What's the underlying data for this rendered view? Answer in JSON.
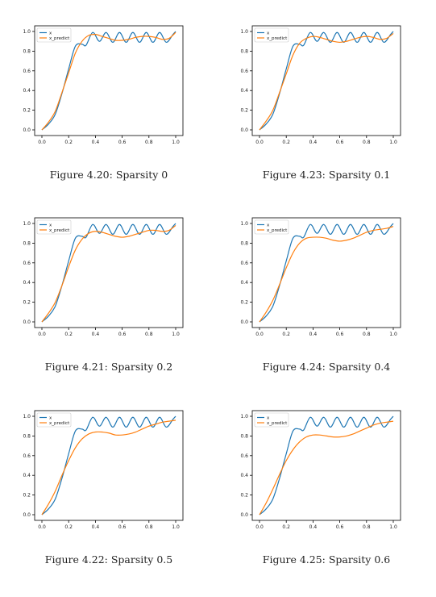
{
  "colors": {
    "x": "#1f77b4",
    "x_predict": "#ff7f0e"
  },
  "legend": {
    "x": "x",
    "x_predict": "x_predict"
  },
  "chart_data": [
    {
      "type": "line",
      "caption": "Figure 4.20: Sparsity 0",
      "xlim": [
        0,
        1
      ],
      "ylim": [
        0,
        1
      ],
      "xticks": [
        "0.0",
        "0.2",
        "0.4",
        "0.6",
        "0.8",
        "1.0"
      ],
      "yticks": [
        "0.0",
        "0.2",
        "0.4",
        "0.6",
        "0.8",
        "1.0"
      ],
      "legend_position": "top-left",
      "series": [
        {
          "name": "x",
          "x": [
            0,
            0.05,
            0.1,
            0.15,
            0.2,
            0.25,
            0.3,
            0.33,
            0.38,
            0.43,
            0.48,
            0.53,
            0.58,
            0.63,
            0.68,
            0.73,
            0.78,
            0.83,
            0.88,
            0.93,
            0.98,
            1.0
          ],
          "y": [
            0,
            0.06,
            0.16,
            0.37,
            0.62,
            0.85,
            0.87,
            0.86,
            0.99,
            0.9,
            0.99,
            0.89,
            0.99,
            0.89,
            0.99,
            0.89,
            0.99,
            0.89,
            0.99,
            0.89,
            0.97,
            1.0
          ]
        },
        {
          "name": "x_predict",
          "x": [
            0,
            0.05,
            0.1,
            0.15,
            0.2,
            0.25,
            0.3,
            0.35,
            0.4,
            0.45,
            0.5,
            0.55,
            0.6,
            0.65,
            0.7,
            0.75,
            0.8,
            0.85,
            0.9,
            0.95,
            1.0
          ],
          "y": [
            0,
            0.08,
            0.19,
            0.38,
            0.58,
            0.78,
            0.9,
            0.96,
            0.97,
            0.95,
            0.93,
            0.91,
            0.91,
            0.92,
            0.94,
            0.95,
            0.95,
            0.94,
            0.92,
            0.93,
            0.99
          ]
        }
      ]
    },
    {
      "type": "line",
      "caption": "Figure 4.23: Sparsity 0.1",
      "xlim": [
        0,
        1
      ],
      "ylim": [
        0,
        1
      ],
      "xticks": [
        "0.0",
        "0.2",
        "0.4",
        "0.6",
        "0.8",
        "1.0"
      ],
      "yticks": [
        "0.0",
        "0.2",
        "0.4",
        "0.6",
        "0.8",
        "1.0"
      ],
      "legend_position": "top-left",
      "series": [
        {
          "name": "x",
          "x": [
            0,
            0.05,
            0.1,
            0.15,
            0.2,
            0.25,
            0.3,
            0.33,
            0.38,
            0.43,
            0.48,
            0.53,
            0.58,
            0.63,
            0.68,
            0.73,
            0.78,
            0.83,
            0.88,
            0.93,
            0.98,
            1.0
          ],
          "y": [
            0,
            0.06,
            0.16,
            0.37,
            0.62,
            0.85,
            0.87,
            0.86,
            0.99,
            0.9,
            0.99,
            0.89,
            0.99,
            0.89,
            0.99,
            0.89,
            0.99,
            0.89,
            0.99,
            0.89,
            0.97,
            1.0
          ]
        },
        {
          "name": "x_predict",
          "x": [
            0,
            0.05,
            0.1,
            0.15,
            0.2,
            0.25,
            0.3,
            0.35,
            0.4,
            0.45,
            0.5,
            0.55,
            0.6,
            0.65,
            0.7,
            0.75,
            0.8,
            0.85,
            0.9,
            0.95,
            1.0
          ],
          "y": [
            0,
            0.09,
            0.2,
            0.38,
            0.57,
            0.76,
            0.88,
            0.93,
            0.95,
            0.94,
            0.92,
            0.9,
            0.89,
            0.9,
            0.92,
            0.94,
            0.95,
            0.94,
            0.92,
            0.93,
            0.98
          ]
        }
      ]
    },
    {
      "type": "line",
      "caption": "Figure 4.21: Sparsity 0.2",
      "xlim": [
        0,
        1
      ],
      "ylim": [
        0,
        1
      ],
      "xticks": [
        "0.0",
        "0.2",
        "0.4",
        "0.6",
        "0.8",
        "1.0"
      ],
      "yticks": [
        "0.0",
        "0.2",
        "0.4",
        "0.6",
        "0.8",
        "1.0"
      ],
      "legend_position": "top-left",
      "series": [
        {
          "name": "x",
          "x": [
            0,
            0.05,
            0.1,
            0.15,
            0.2,
            0.25,
            0.3,
            0.33,
            0.38,
            0.43,
            0.48,
            0.53,
            0.58,
            0.63,
            0.68,
            0.73,
            0.78,
            0.83,
            0.88,
            0.93,
            0.98,
            1.0
          ],
          "y": [
            0,
            0.06,
            0.16,
            0.37,
            0.62,
            0.85,
            0.87,
            0.86,
            0.99,
            0.9,
            0.99,
            0.89,
            0.99,
            0.89,
            0.99,
            0.89,
            0.99,
            0.89,
            0.99,
            0.89,
            0.97,
            1.0
          ]
        },
        {
          "name": "x_predict",
          "x": [
            0,
            0.05,
            0.1,
            0.15,
            0.2,
            0.25,
            0.3,
            0.35,
            0.4,
            0.45,
            0.5,
            0.55,
            0.6,
            0.65,
            0.7,
            0.75,
            0.8,
            0.85,
            0.9,
            0.95,
            1.0
          ],
          "y": [
            0,
            0.09,
            0.2,
            0.37,
            0.56,
            0.73,
            0.84,
            0.9,
            0.92,
            0.91,
            0.89,
            0.87,
            0.86,
            0.87,
            0.89,
            0.91,
            0.93,
            0.93,
            0.92,
            0.93,
            0.98
          ]
        }
      ]
    },
    {
      "type": "line",
      "caption": "Figure 4.24: Sparsity 0.4",
      "xlim": [
        0,
        1
      ],
      "ylim": [
        0,
        1
      ],
      "xticks": [
        "0.0",
        "0.2",
        "0.4",
        "0.6",
        "0.8",
        "1.0"
      ],
      "yticks": [
        "0.0",
        "0.2",
        "0.4",
        "0.6",
        "0.8",
        "1.0"
      ],
      "legend_position": "top-left",
      "series": [
        {
          "name": "x",
          "x": [
            0,
            0.05,
            0.1,
            0.15,
            0.2,
            0.25,
            0.3,
            0.33,
            0.38,
            0.43,
            0.48,
            0.53,
            0.58,
            0.63,
            0.68,
            0.73,
            0.78,
            0.83,
            0.88,
            0.93,
            0.98,
            1.0
          ],
          "y": [
            0,
            0.06,
            0.16,
            0.37,
            0.62,
            0.85,
            0.87,
            0.86,
            0.99,
            0.9,
            0.99,
            0.89,
            0.99,
            0.89,
            0.99,
            0.89,
            0.99,
            0.89,
            0.99,
            0.89,
            0.97,
            1.0
          ]
        },
        {
          "name": "x_predict",
          "x": [
            0,
            0.05,
            0.1,
            0.15,
            0.2,
            0.25,
            0.3,
            0.35,
            0.4,
            0.45,
            0.5,
            0.55,
            0.6,
            0.65,
            0.7,
            0.75,
            0.8,
            0.85,
            0.9,
            0.95,
            1.0
          ],
          "y": [
            0,
            0.1,
            0.22,
            0.38,
            0.55,
            0.7,
            0.8,
            0.85,
            0.86,
            0.86,
            0.85,
            0.83,
            0.82,
            0.83,
            0.85,
            0.88,
            0.91,
            0.93,
            0.94,
            0.95,
            0.97
          ]
        }
      ]
    },
    {
      "type": "line",
      "caption": "Figure 4.22: Sparsity 0.5",
      "xlim": [
        0,
        1
      ],
      "ylim": [
        0,
        1
      ],
      "xticks": [
        "0.0",
        "0.2",
        "0.4",
        "0.6",
        "0.8",
        "1.0"
      ],
      "yticks": [
        "0.0",
        "0.2",
        "0.4",
        "0.6",
        "0.8",
        "1.0"
      ],
      "legend_position": "top-left",
      "series": [
        {
          "name": "x",
          "x": [
            0,
            0.05,
            0.1,
            0.15,
            0.2,
            0.25,
            0.3,
            0.33,
            0.38,
            0.43,
            0.48,
            0.53,
            0.58,
            0.63,
            0.68,
            0.73,
            0.78,
            0.83,
            0.88,
            0.93,
            0.98,
            1.0
          ],
          "y": [
            0,
            0.06,
            0.16,
            0.37,
            0.62,
            0.85,
            0.87,
            0.86,
            0.99,
            0.9,
            0.99,
            0.89,
            0.99,
            0.89,
            0.99,
            0.89,
            0.99,
            0.89,
            0.99,
            0.89,
            0.97,
            1.0
          ]
        },
        {
          "name": "x_predict",
          "x": [
            0,
            0.05,
            0.1,
            0.15,
            0.2,
            0.25,
            0.3,
            0.35,
            0.4,
            0.45,
            0.5,
            0.55,
            0.6,
            0.65,
            0.7,
            0.75,
            0.8,
            0.85,
            0.9,
            0.95,
            1.0
          ],
          "y": [
            0,
            0.11,
            0.24,
            0.4,
            0.55,
            0.68,
            0.77,
            0.82,
            0.84,
            0.84,
            0.83,
            0.81,
            0.81,
            0.82,
            0.84,
            0.87,
            0.9,
            0.92,
            0.94,
            0.95,
            0.96
          ]
        }
      ]
    },
    {
      "type": "line",
      "caption": "Figure 4.25: Sparsity 0.6",
      "xlim": [
        0,
        1
      ],
      "ylim": [
        0,
        1
      ],
      "xticks": [
        "0.0",
        "0.2",
        "0.4",
        "0.6",
        "0.8",
        "1.0"
      ],
      "yticks": [
        "0.0",
        "0.2",
        "0.4",
        "0.6",
        "0.8",
        "1.0"
      ],
      "legend_position": "top-left",
      "series": [
        {
          "name": "x",
          "x": [
            0,
            0.05,
            0.1,
            0.15,
            0.2,
            0.25,
            0.3,
            0.33,
            0.38,
            0.43,
            0.48,
            0.53,
            0.58,
            0.63,
            0.68,
            0.73,
            0.78,
            0.83,
            0.88,
            0.93,
            0.98,
            1.0
          ],
          "y": [
            0,
            0.06,
            0.16,
            0.37,
            0.62,
            0.85,
            0.87,
            0.86,
            0.99,
            0.9,
            0.99,
            0.89,
            0.99,
            0.89,
            0.99,
            0.89,
            0.99,
            0.89,
            0.99,
            0.89,
            0.97,
            1.0
          ]
        },
        {
          "name": "x_predict",
          "x": [
            0,
            0.05,
            0.1,
            0.15,
            0.2,
            0.25,
            0.3,
            0.35,
            0.4,
            0.45,
            0.5,
            0.55,
            0.6,
            0.65,
            0.7,
            0.75,
            0.8,
            0.85,
            0.9,
            0.95,
            1.0
          ],
          "y": [
            0,
            0.12,
            0.26,
            0.41,
            0.55,
            0.66,
            0.74,
            0.79,
            0.81,
            0.81,
            0.8,
            0.79,
            0.79,
            0.8,
            0.82,
            0.85,
            0.88,
            0.91,
            0.93,
            0.94,
            0.95
          ]
        }
      ]
    }
  ]
}
